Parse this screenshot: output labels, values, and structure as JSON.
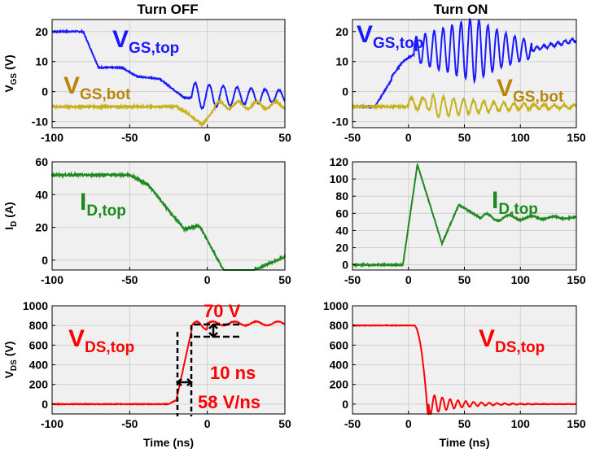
{
  "column_titles": {
    "left": "Turn OFF",
    "right": "Turn ON"
  },
  "colors": {
    "blue": "#1a1aff",
    "gold": "#c7b21c",
    "gold_text": "#b8860b",
    "green": "#1e8a1e",
    "red": "#ff0000",
    "panel_bg": "#f0f0f0",
    "grid": "#d0d0d0"
  },
  "chart_data": [
    {
      "id": "vgs-off",
      "type": "line",
      "title": "Turn OFF",
      "xlabel": "",
      "ylabel_main": "V",
      "ylabel_sub": "GS",
      "ylabel_unit": " (V)",
      "xlim": [
        -100,
        50
      ],
      "ylim": [
        -12,
        24
      ],
      "xticks": [
        -100,
        -50,
        0,
        50
      ],
      "yticks": [
        20,
        10,
        0,
        -10
      ],
      "grid": true,
      "series": [
        {
          "name": "V_GS,top",
          "color": "#1a1aff",
          "kind": "vgs_top_off"
        },
        {
          "name": "V_GS,bot",
          "color": "#c7b21c",
          "kind": "vgs_bot_off"
        }
      ]
    },
    {
      "id": "vgs-on",
      "type": "line",
      "title": "Turn ON",
      "xlabel": "",
      "xlim": [
        -50,
        150
      ],
      "ylim": [
        -12,
        24
      ],
      "xticks": [
        -50,
        0,
        50,
        100,
        150
      ],
      "yticks": [
        20,
        10,
        0,
        -10
      ],
      "grid": true,
      "series": [
        {
          "name": "V_GS,top",
          "color": "#1a1aff",
          "kind": "vgs_top_on"
        },
        {
          "name": "V_GS,bot",
          "color": "#c7b21c",
          "kind": "vgs_bot_on"
        }
      ]
    },
    {
      "id": "id-off",
      "type": "line",
      "xlabel": "",
      "ylabel_main": "I",
      "ylabel_sub": "D",
      "ylabel_unit": " (A)",
      "xlim": [
        -100,
        50
      ],
      "ylim": [
        -6,
        60
      ],
      "xticks": [
        -100,
        -50,
        0,
        50
      ],
      "yticks": [
        60,
        40,
        20,
        0
      ],
      "grid": true,
      "series": [
        {
          "name": "I_D,top",
          "color": "#1e8a1e",
          "kind": "id_off"
        }
      ]
    },
    {
      "id": "id-on",
      "type": "line",
      "xlabel": "",
      "xlim": [
        -50,
        150
      ],
      "ylim": [
        -6,
        120
      ],
      "xticks": [
        -50,
        0,
        50,
        100,
        150
      ],
      "yticks": [
        120,
        100,
        80,
        60,
        40,
        20,
        0
      ],
      "grid": true,
      "series": [
        {
          "name": "I_D,top",
          "color": "#1e8a1e",
          "kind": "id_on"
        }
      ]
    },
    {
      "id": "vds-off",
      "type": "line",
      "xlabel": "Time (ns)",
      "ylabel_main": "V",
      "ylabel_sub": "DS",
      "ylabel_unit": " (V)",
      "xlim": [
        -100,
        50
      ],
      "ylim": [
        -100,
        1000
      ],
      "xticks": [
        -100,
        -50,
        0,
        50
      ],
      "yticks": [
        1000,
        800,
        600,
        400,
        200,
        0
      ],
      "grid": true,
      "series": [
        {
          "name": "V_DS,top",
          "color": "#ff0000",
          "kind": "vds_off"
        }
      ]
    },
    {
      "id": "vds-on",
      "type": "line",
      "xlabel": "Time (ns)",
      "xlim": [
        -50,
        150
      ],
      "ylim": [
        -100,
        1000
      ],
      "xticks": [
        -50,
        0,
        50,
        100,
        150
      ],
      "yticks": [
        1000,
        800,
        600,
        400,
        200,
        0
      ],
      "grid": true,
      "series": [
        {
          "name": "V_DS,top",
          "color": "#ff0000",
          "kind": "vds_on"
        }
      ]
    }
  ],
  "annotations": {
    "vgs_top_off": {
      "main": "V",
      "sub": "GS,top"
    },
    "vgs_bot_off": {
      "main": "V",
      "sub": "GS,bot"
    },
    "vgs_top_on": {
      "main": "V",
      "sub": "GS,top"
    },
    "vgs_bot_on": {
      "main": "V",
      "sub": "GS,bot"
    },
    "id_off": {
      "main": "I",
      "sub": "D,top"
    },
    "id_on": {
      "main": "I",
      "sub": "D,top"
    },
    "vds_off": {
      "main": "V",
      "sub": "DS,top"
    },
    "vds_on": {
      "main": "V",
      "sub": "DS,top"
    },
    "overshoot": "70 V",
    "rise_time": "10 ns",
    "slew_rate": "58 V/ns"
  }
}
